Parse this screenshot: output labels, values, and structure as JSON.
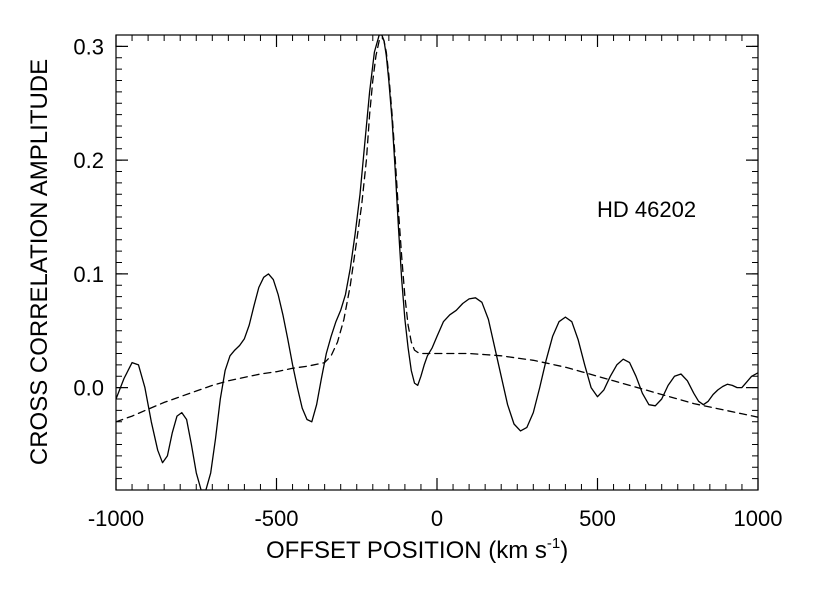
{
  "chart_data": {
    "type": "line",
    "title": "",
    "xlabel": "OFFSET POSITION (km s",
    "xlabel_sup": "-1",
    "xlabel_end": ")",
    "ylabel": "CROSS CORRELATION AMPLITUDE",
    "annotation": "HD 46202",
    "xlim": [
      -1000,
      1000
    ],
    "ylim": [
      -0.09,
      0.31
    ],
    "xticks": [
      {
        "value": -1000,
        "label": "-1000"
      },
      {
        "value": -500,
        "label": "-500"
      },
      {
        "value": 0,
        "label": "0"
      },
      {
        "value": 500,
        "label": "500"
      },
      {
        "value": 1000,
        "label": "1000"
      }
    ],
    "yticks": [
      {
        "value": 0.0,
        "label": "0.0"
      },
      {
        "value": 0.1,
        "label": "0.1"
      },
      {
        "value": 0.2,
        "label": "0.2"
      },
      {
        "value": 0.3,
        "label": "0.3"
      }
    ],
    "grid": false,
    "series": [
      {
        "style": "solid",
        "color": "#000000",
        "x": [
          -1000,
          -975,
          -950,
          -930,
          -910,
          -890,
          -870,
          -855,
          -840,
          -825,
          -810,
          -795,
          -780,
          -765,
          -750,
          -735,
          -720,
          -705,
          -690,
          -675,
          -660,
          -645,
          -630,
          -615,
          -600,
          -585,
          -570,
          -555,
          -540,
          -525,
          -510,
          -495,
          -480,
          -465,
          -450,
          -435,
          -420,
          -405,
          -390,
          -375,
          -360,
          -345,
          -330,
          -315,
          -300,
          -285,
          -270,
          -255,
          -240,
          -225,
          -210,
          -195,
          -180,
          -172,
          -165,
          -158,
          -150,
          -140,
          -130,
          -120,
          -110,
          -100,
          -90,
          -80,
          -70,
          -60,
          -50,
          -40,
          -30,
          -15,
          0,
          20,
          40,
          60,
          80,
          100,
          120,
          140,
          160,
          180,
          200,
          220,
          240,
          260,
          280,
          300,
          320,
          340,
          360,
          380,
          400,
          420,
          440,
          460,
          480,
          500,
          520,
          540,
          560,
          580,
          600,
          620,
          640,
          660,
          680,
          700,
          720,
          740,
          760,
          780,
          800,
          815,
          830,
          845,
          860,
          875,
          890,
          905,
          920,
          935,
          950,
          965,
          980,
          1000
        ],
        "y": [
          -0.01,
          0.008,
          0.022,
          0.02,
          0.0,
          -0.03,
          -0.055,
          -0.066,
          -0.06,
          -0.04,
          -0.025,
          -0.022,
          -0.028,
          -0.05,
          -0.075,
          -0.09,
          -0.09,
          -0.075,
          -0.045,
          -0.01,
          0.015,
          0.028,
          0.033,
          0.037,
          0.043,
          0.055,
          0.072,
          0.088,
          0.097,
          0.1,
          0.095,
          0.082,
          0.064,
          0.043,
          0.02,
          0.0,
          -0.018,
          -0.028,
          -0.03,
          -0.015,
          0.008,
          0.03,
          0.045,
          0.058,
          0.068,
          0.082,
          0.105,
          0.135,
          0.17,
          0.215,
          0.26,
          0.295,
          0.31,
          0.31,
          0.305,
          0.292,
          0.27,
          0.235,
          0.19,
          0.14,
          0.095,
          0.06,
          0.035,
          0.015,
          0.004,
          0.002,
          0.01,
          0.02,
          0.028,
          0.035,
          0.045,
          0.058,
          0.064,
          0.068,
          0.074,
          0.078,
          0.079,
          0.075,
          0.06,
          0.035,
          0.01,
          -0.015,
          -0.032,
          -0.038,
          -0.035,
          -0.022,
          0.0,
          0.024,
          0.045,
          0.058,
          0.062,
          0.058,
          0.042,
          0.02,
          0.0,
          -0.008,
          -0.002,
          0.01,
          0.02,
          0.025,
          0.022,
          0.01,
          -0.005,
          -0.015,
          -0.016,
          -0.01,
          0.002,
          0.01,
          0.012,
          0.006,
          -0.005,
          -0.012,
          -0.015,
          -0.012,
          -0.006,
          -0.002,
          0.001,
          0.003,
          0.002,
          0.0,
          0.0,
          0.005,
          0.01,
          0.013
        ]
      },
      {
        "style": "dashed",
        "color": "#000000",
        "x": [
          -1000,
          -950,
          -900,
          -850,
          -800,
          -750,
          -700,
          -650,
          -600,
          -550,
          -500,
          -450,
          -400,
          -350,
          -330,
          -310,
          -290,
          -270,
          -250,
          -235,
          -220,
          -210,
          -200,
          -190,
          -180,
          -172,
          -165,
          -158,
          -150,
          -140,
          -130,
          -120,
          -110,
          -100,
          -90,
          -80,
          -70,
          -60,
          -50,
          -40,
          -20,
          0,
          50,
          100,
          150,
          200,
          250,
          300,
          350,
          400,
          450,
          500,
          550,
          600,
          650,
          700,
          750,
          800,
          850,
          900,
          950,
          1000
        ],
        "y": [
          -0.03,
          -0.025,
          -0.019,
          -0.013,
          -0.008,
          -0.003,
          0.002,
          0.006,
          0.009,
          0.012,
          0.014,
          0.017,
          0.019,
          0.022,
          0.028,
          0.04,
          0.06,
          0.09,
          0.13,
          0.16,
          0.2,
          0.24,
          0.27,
          0.292,
          0.305,
          0.308,
          0.305,
          0.295,
          0.275,
          0.24,
          0.2,
          0.155,
          0.115,
          0.08,
          0.055,
          0.04,
          0.033,
          0.031,
          0.03,
          0.03,
          0.03,
          0.03,
          0.03,
          0.03,
          0.029,
          0.028,
          0.026,
          0.024,
          0.021,
          0.018,
          0.014,
          0.01,
          0.006,
          0.002,
          -0.002,
          -0.006,
          -0.01,
          -0.014,
          -0.017,
          -0.02,
          -0.023,
          -0.026
        ]
      }
    ]
  }
}
